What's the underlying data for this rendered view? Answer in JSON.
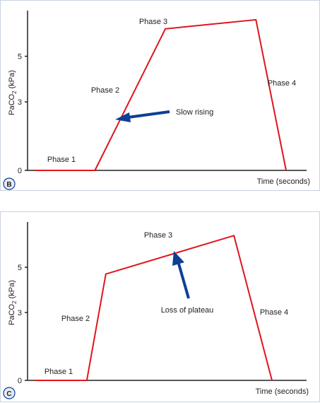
{
  "colors": {
    "curve": "#e0141d",
    "arrow": "#0d3f95",
    "axis": "#222222",
    "badge_border": "#0d3f95",
    "badge_fill": "#e6ebf3",
    "panel_border": "#c9d3df"
  },
  "chart_data": [
    {
      "panel_label": "B",
      "type": "line",
      "xlabel": "Time (seconds)",
      "ylabel": "PaCO2 (kPa)",
      "ylabel_parts": {
        "main": "PaCO",
        "sub": "2",
        "unit": " (kPa)"
      },
      "yticks": [
        "0",
        "3",
        "5"
      ],
      "ylim": [
        0,
        7
      ],
      "xlim": [
        0,
        100
      ],
      "series": [
        {
          "x": [
            0,
            24,
            52,
            88,
            100
          ],
          "y": [
            0,
            0,
            6.2,
            6.6,
            0
          ]
        }
      ],
      "annotations": [
        {
          "text": "Phase 1"
        },
        {
          "text": "Phase 2"
        },
        {
          "text": "Phase 3"
        },
        {
          "text": "Phase 4"
        },
        {
          "text": "Slow rising"
        }
      ]
    },
    {
      "panel_label": "C",
      "type": "line",
      "xlabel": "Time (seconds)",
      "ylabel": "PaCO2 (kPa)",
      "ylabel_parts": {
        "main": "PaCO",
        "sub": "2",
        "unit": " (kPa)"
      },
      "yticks": [
        "0",
        "3",
        "5"
      ],
      "ylim": [
        0,
        7
      ],
      "xlim": [
        0,
        100
      ],
      "series": [
        {
          "x": [
            0,
            22,
            30,
            84,
            100
          ],
          "y": [
            0,
            0,
            4.7,
            6.4,
            0
          ]
        }
      ],
      "annotations": [
        {
          "text": "Phase 1"
        },
        {
          "text": "Phase 2"
        },
        {
          "text": "Phase 3"
        },
        {
          "text": "Phase 4"
        },
        {
          "text": "Loss of plateau"
        }
      ]
    }
  ]
}
